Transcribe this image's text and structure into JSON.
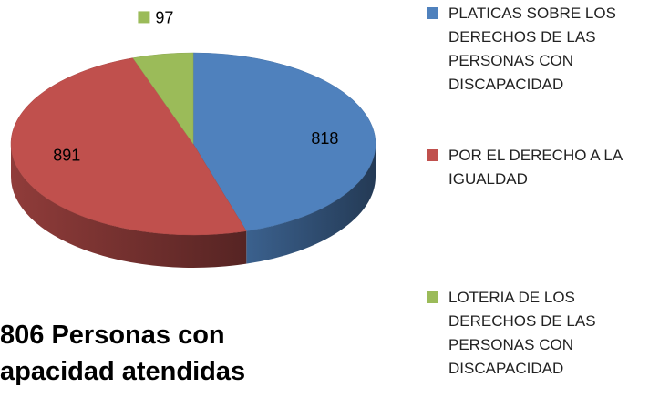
{
  "chart_data": {
    "type": "pie",
    "title_lines": [
      "806 Personas con",
      "apacidad atendidas"
    ],
    "categories": [
      "PLATICAS SOBRE LOS DERECHOS DE LAS PERSONAS CON DISCAPACIDAD",
      "POR EL DERECHO A LA IGUALDAD",
      "LOTERIA DE LOS DERECHOS DE LAS PERSONAS CON DISCAPACIDAD"
    ],
    "values": [
      818,
      891,
      97
    ],
    "colors": [
      "#4f81bd",
      "#c0504d",
      "#9bbb59"
    ],
    "legend": "right"
  }
}
